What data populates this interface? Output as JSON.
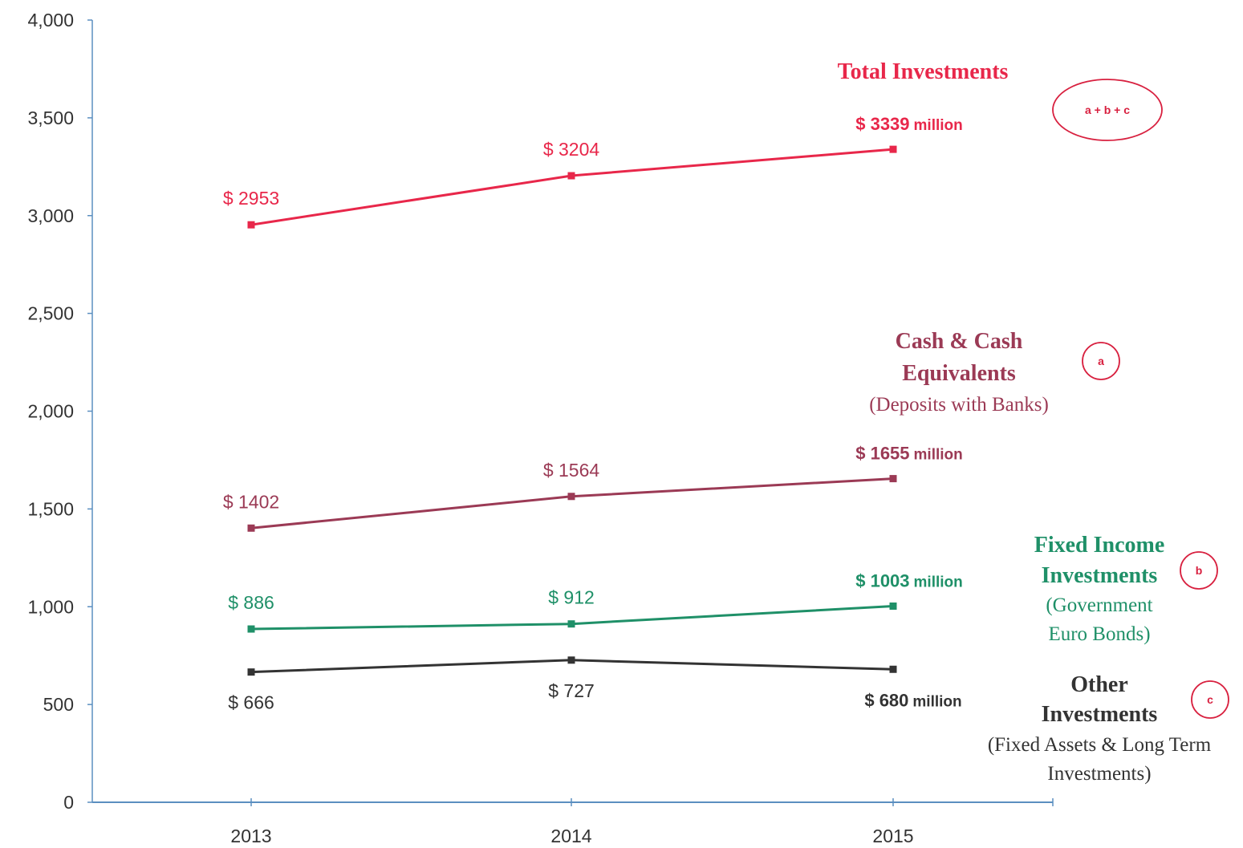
{
  "chart_data": {
    "type": "line",
    "x": [
      "2013",
      "2014",
      "2015"
    ],
    "ylim": [
      0,
      4000
    ],
    "yticks": [
      "0",
      "500",
      "1,000",
      "1,500",
      "2,000",
      "2,500",
      "3,000",
      "3,500",
      "4,000"
    ],
    "ytick_values": [
      0,
      500,
      1000,
      1500,
      2000,
      2500,
      3000,
      3500,
      4000
    ],
    "grid": false,
    "series": [
      {
        "key": "total",
        "name": "Total Investments",
        "badge": "a + b + c",
        "color": "#e8274a",
        "values": [
          2953,
          3204,
          3339
        ],
        "data_labels": [
          "$ 2953",
          "$ 3204",
          "$ 3339"
        ],
        "last_suffix": "million"
      },
      {
        "key": "cash",
        "name": "Cash & Cash Equivalents",
        "name_lines": [
          "Cash & Cash",
          "Equivalents"
        ],
        "sub_lines": [
          "(Deposits with Banks)"
        ],
        "badge": "a",
        "color": "#9b3a55",
        "values": [
          1402,
          1564,
          1655
        ],
        "data_labels": [
          "$ 1402",
          "$ 1564",
          "$ 1655"
        ],
        "last_suffix": "million"
      },
      {
        "key": "fixed",
        "name": "Fixed Income Investments",
        "name_lines": [
          "Fixed Income",
          "Investments"
        ],
        "sub_lines": [
          "(Government",
          "Euro Bonds)"
        ],
        "badge": "b",
        "color": "#1f9068",
        "values": [
          886,
          912,
          1003
        ],
        "data_labels": [
          "$ 886",
          "$ 912",
          "$ 1003"
        ],
        "last_suffix": "million"
      },
      {
        "key": "other",
        "name": "Other Investments",
        "name_lines": [
          "Other",
          "Investments"
        ],
        "sub_lines": [
          "(Fixed Assets & Long Term",
          "Investments)"
        ],
        "badge": "c",
        "color": "#333333",
        "values": [
          666,
          727,
          680
        ],
        "data_labels": [
          "$ 666",
          "$ 727",
          "$ 680"
        ],
        "last_suffix": "million"
      }
    ]
  },
  "colors": {
    "axis": "#5b8fc0",
    "badge_ring": "#d8203f",
    "tick_text": "#333333"
  }
}
